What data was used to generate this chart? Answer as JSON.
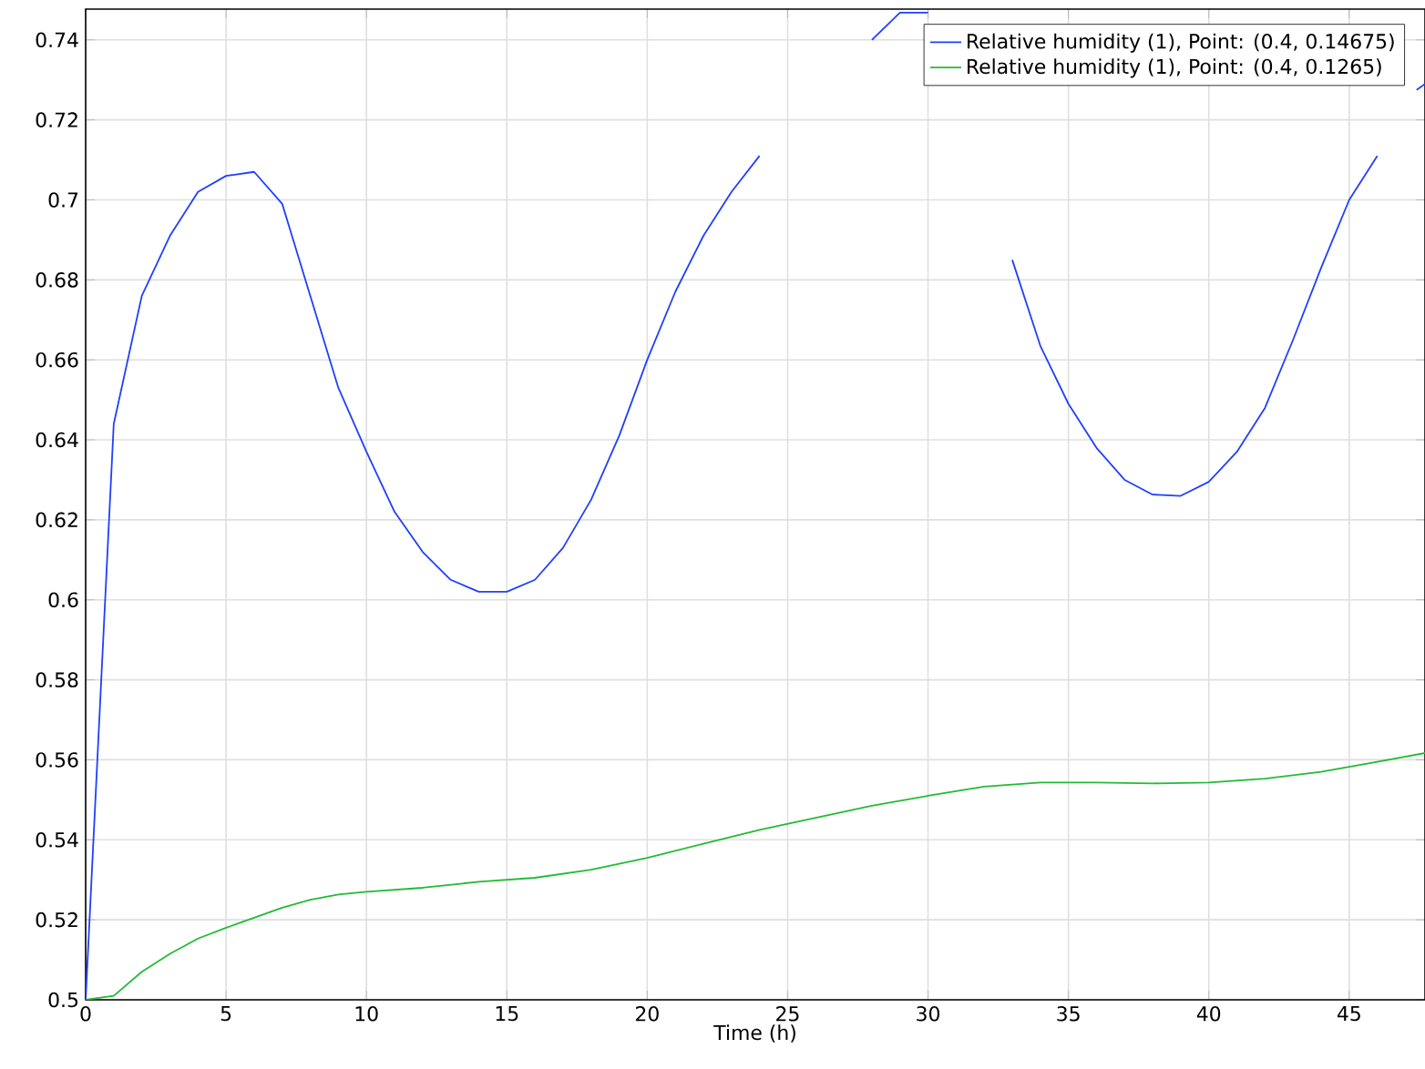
{
  "chart_data": {
    "type": "line",
    "xlabel": "Time (h)",
    "series": [
      {
        "name": "Relative humidity (1), Point: (0.4, 0.14675)",
        "color": "#1f3fff",
        "x": [
          0,
          1,
          2,
          3,
          4,
          5,
          6,
          7,
          8,
          9,
          10,
          11,
          12,
          13,
          14,
          15,
          16,
          17,
          18,
          19,
          20,
          21,
          22,
          23,
          24,
          25,
          26,
          27,
          28,
          29,
          30,
          31,
          32,
          33,
          34,
          35,
          36,
          37,
          38,
          39,
          40,
          41,
          42,
          43,
          44,
          45,
          46,
          47,
          47.4,
          47.7
        ],
        "values": [
          0.5,
          0.644,
          0.676,
          0.691,
          0.702,
          0.706,
          0.707,
          0.699,
          0.676,
          0.653,
          0.637,
          0.622,
          0.612,
          0.605,
          0.602,
          0.602,
          0.605,
          0.613,
          0.625,
          0.641,
          0.66,
          0.677,
          0.691,
          0.702,
          0.711,
          null,
          null,
          null,
          0.74,
          0.7468,
          0.7468,
          null,
          null,
          0.685,
          0.6635,
          0.649,
          0.638,
          0.63,
          0.6263,
          0.626,
          0.6295,
          0.637,
          0.648,
          0.665,
          0.683,
          0.7,
          0.711,
          null,
          0.7275,
          0.729
        ]
      },
      {
        "name": "Relative humidity (1), Point: (0.4, 0.1265)",
        "color": "#22bb33",
        "x": [
          0,
          1,
          2,
          3,
          4,
          5,
          6,
          7,
          8,
          9,
          10,
          12,
          14,
          16,
          18,
          20,
          22,
          24,
          26,
          28,
          30,
          32,
          34,
          36,
          38,
          40,
          42,
          44,
          46,
          47.7
        ],
        "values": [
          0.5,
          0.501,
          0.507,
          0.5115,
          0.5153,
          0.518,
          0.5205,
          0.523,
          0.525,
          0.5263,
          0.527,
          0.528,
          0.5295,
          0.5305,
          0.5325,
          0.5355,
          0.539,
          0.5425,
          0.5455,
          0.5485,
          0.551,
          0.5533,
          0.5543,
          0.5543,
          0.5541,
          0.5543,
          0.5553,
          0.557,
          0.5595,
          0.5617
        ]
      }
    ],
    "xlim": [
      0,
      47.7
    ],
    "ylim": [
      0.5,
      0.7477
    ],
    "xticks": [
      0,
      5,
      10,
      15,
      20,
      25,
      30,
      35,
      40,
      45
    ],
    "yticks": [
      0.5,
      0.52,
      0.54,
      0.56,
      0.58,
      0.6,
      0.62,
      0.64,
      0.66,
      0.68,
      0.7,
      0.72,
      0.74
    ],
    "grid": true,
    "legend": "top right",
    "line_style": "solid"
  }
}
